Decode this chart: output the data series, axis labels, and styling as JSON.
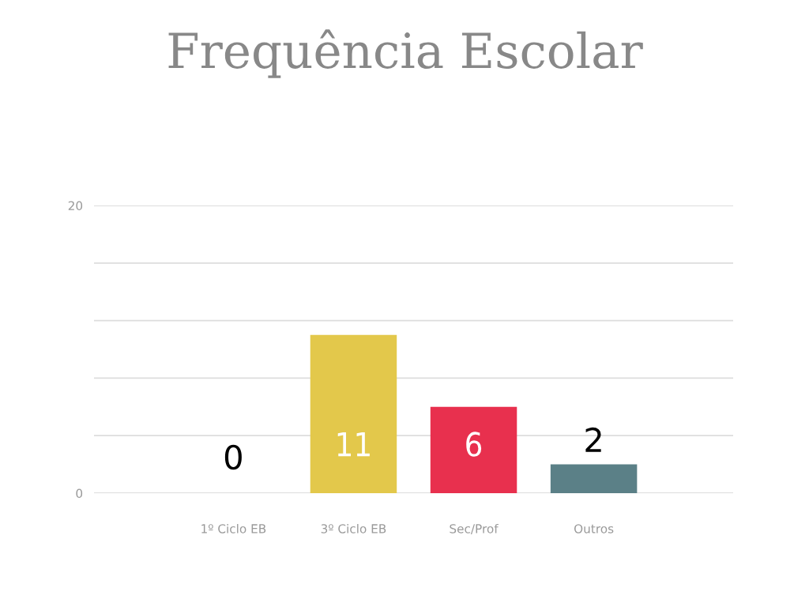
{
  "chart_data": {
    "type": "bar",
    "title": "Frequência Escolar",
    "categories": [
      "1º Ciclo EB",
      "3º Ciclo EB",
      "Sec/Prof",
      "Outros"
    ],
    "values": [
      0,
      11,
      6,
      2
    ],
    "colors": [
      "#3d7ab8",
      "#e3c84b",
      "#e8304e",
      "#5b8087"
    ],
    "ylim": [
      0,
      20
    ],
    "yticks": [
      0,
      {
        "value": 4,
        "label": null
      },
      {
        "value": 8,
        "label": null
      },
      {
        "value": 12,
        "label": null
      },
      {
        "value": 16,
        "label": null
      },
      20
    ],
    "grid": "y",
    "legend": false,
    "data_labels": true
  }
}
